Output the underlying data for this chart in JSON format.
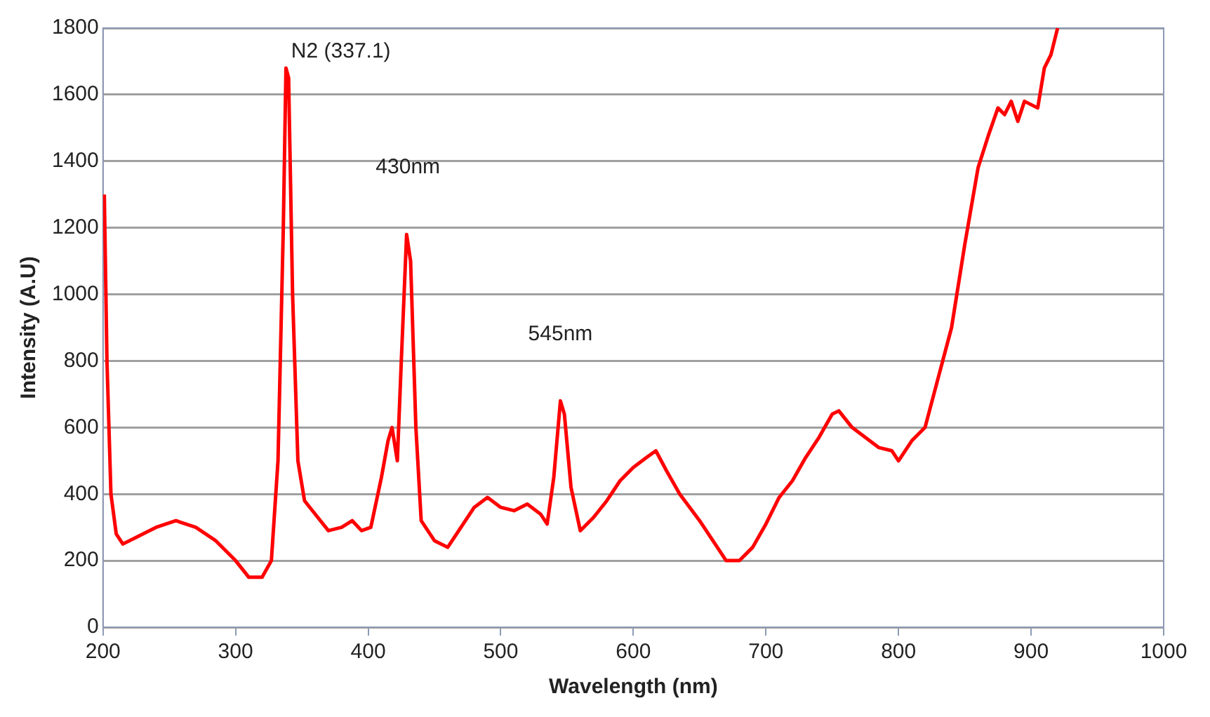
{
  "chart_data": {
    "type": "line",
    "xlabel": "Wavelength (nm)",
    "ylabel": "Intensity (A.U)",
    "xlim": [
      200,
      1000
    ],
    "xticks": [
      200,
      300,
      400,
      500,
      600,
      700,
      800,
      900,
      1000
    ],
    "ylim": [
      0,
      1800
    ],
    "yticks": [
      0,
      200,
      400,
      600,
      800,
      1000,
      1200,
      1400,
      1600,
      1800
    ],
    "grid": "y",
    "legend": false,
    "marker": "none",
    "line_style": "solid",
    "annotations": [
      {
        "text": "N2 (337.1)",
        "x": 337.1,
        "y": 1680
      },
      {
        "text": "430nm",
        "x": 430,
        "y": 1180
      },
      {
        "text": "545nm",
        "x": 545,
        "y": 680
      }
    ],
    "series": [
      {
        "color": "#ff0000",
        "x": [
          201,
          203,
          206,
          210,
          215,
          225,
          240,
          255,
          270,
          285,
          300,
          310,
          320,
          327,
          332,
          336,
          338,
          340,
          343,
          347,
          352,
          360,
          370,
          380,
          388,
          395,
          402,
          410,
          415,
          418,
          422,
          425,
          429,
          432,
          436,
          440,
          450,
          460,
          470,
          480,
          490,
          500,
          510,
          520,
          530,
          535,
          540,
          545,
          548,
          553,
          560,
          570,
          580,
          590,
          600,
          610,
          617,
          625,
          635,
          650,
          660,
          670,
          680,
          690,
          700,
          710,
          720,
          730,
          740,
          750,
          755,
          765,
          775,
          785,
          795,
          800,
          810,
          820,
          830,
          840,
          850,
          860,
          868,
          875,
          880,
          885,
          890,
          895,
          905,
          910,
          915,
          920
        ],
        "values": [
          1300,
          800,
          400,
          280,
          250,
          270,
          300,
          320,
          300,
          260,
          200,
          150,
          150,
          200,
          500,
          1200,
          1680,
          1650,
          1000,
          500,
          380,
          340,
          290,
          300,
          320,
          290,
          300,
          450,
          560,
          600,
          500,
          800,
          1180,
          1100,
          600,
          320,
          260,
          240,
          300,
          360,
          390,
          360,
          350,
          370,
          340,
          310,
          450,
          680,
          640,
          420,
          290,
          330,
          380,
          440,
          480,
          510,
          530,
          470,
          400,
          320,
          260,
          200,
          200,
          240,
          310,
          390,
          440,
          510,
          570,
          640,
          650,
          600,
          570,
          540,
          530,
          500,
          560,
          600,
          750,
          900,
          1150,
          1380,
          1480,
          1560,
          1540,
          1580,
          1520,
          1580,
          1560,
          1680,
          1720,
          1800
        ]
      }
    ]
  }
}
